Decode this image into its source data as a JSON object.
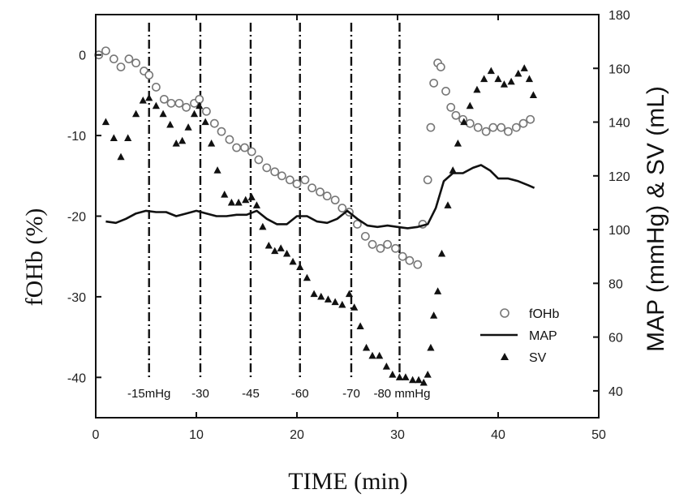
{
  "chart_data": {
    "type": "scatter",
    "xlabel": "TIME (min)",
    "ylabel_left": "fOHb (%)",
    "ylabel_right": "MAP (mmHg) & SV (mL)",
    "xlim": [
      0,
      50
    ],
    "ylim_left": [
      -45,
      5
    ],
    "ylim_right": [
      30,
      180
    ],
    "x_ticks": [
      0,
      10,
      20,
      30,
      40,
      50
    ],
    "y_left_ticks": [
      0,
      -10,
      -20,
      -30,
      -40
    ],
    "y_right_ticks": [
      40,
      60,
      80,
      100,
      120,
      140,
      160,
      180
    ],
    "grid": false,
    "legend_position": "bottom-right",
    "phase_markers": [
      {
        "x": 5.3,
        "label": "-15mHg"
      },
      {
        "x": 10.4,
        "label": "-30"
      },
      {
        "x": 15.4,
        "label": "-45"
      },
      {
        "x": 20.3,
        "label": "-60"
      },
      {
        "x": 25.4,
        "label": "-70"
      },
      {
        "x": 30.2,
        "label": "-80 mmHg"
      }
    ],
    "series": [
      {
        "name": "fOHb",
        "axis": "left",
        "marker": "open-circle",
        "points": [
          [
            0.3,
            0
          ],
          [
            1,
            0.5
          ],
          [
            1.8,
            -0.5
          ],
          [
            2.5,
            -1.5
          ],
          [
            3.3,
            -0.5
          ],
          [
            4,
            -1
          ],
          [
            4.8,
            -2
          ],
          [
            5.3,
            -2.5
          ],
          [
            6,
            -4
          ],
          [
            6.8,
            -5.5
          ],
          [
            7.5,
            -6
          ],
          [
            8.3,
            -6
          ],
          [
            9,
            -6.5
          ],
          [
            9.8,
            -6
          ],
          [
            10.3,
            -5.5
          ],
          [
            11,
            -7
          ],
          [
            11.8,
            -8.5
          ],
          [
            12.5,
            -9.5
          ],
          [
            13.3,
            -10.5
          ],
          [
            14,
            -11.5
          ],
          [
            14.8,
            -11.5
          ],
          [
            15.5,
            -12
          ],
          [
            16.2,
            -13
          ],
          [
            17,
            -14
          ],
          [
            17.8,
            -14.5
          ],
          [
            18.5,
            -15
          ],
          [
            19.3,
            -15.5
          ],
          [
            20,
            -16
          ],
          [
            20.8,
            -15.5
          ],
          [
            21.5,
            -16.5
          ],
          [
            22.3,
            -17
          ],
          [
            23,
            -17.5
          ],
          [
            23.8,
            -18
          ],
          [
            24.5,
            -19
          ],
          [
            25.2,
            -19.5
          ],
          [
            26,
            -21
          ],
          [
            26.8,
            -22.5
          ],
          [
            27.5,
            -23.5
          ],
          [
            28.3,
            -24
          ],
          [
            29,
            -23.5
          ],
          [
            29.8,
            -24
          ],
          [
            30.5,
            -25
          ],
          [
            31.2,
            -25.5
          ],
          [
            32,
            -26
          ],
          [
            32.5,
            -21
          ],
          [
            33,
            -15.5
          ],
          [
            33.3,
            -9
          ],
          [
            33.6,
            -3.5
          ],
          [
            34,
            -1
          ],
          [
            34.3,
            -1.5
          ],
          [
            34.8,
            -4.5
          ],
          [
            35.3,
            -6.5
          ],
          [
            35.8,
            -7.5
          ],
          [
            36.5,
            -8
          ],
          [
            37.2,
            -8.5
          ],
          [
            38,
            -9
          ],
          [
            38.8,
            -9.5
          ],
          [
            39.5,
            -9
          ],
          [
            40.3,
            -9
          ],
          [
            41,
            -9.5
          ],
          [
            41.8,
            -9
          ],
          [
            42.5,
            -8.5
          ],
          [
            43.2,
            -8
          ]
        ]
      },
      {
        "name": "MAP",
        "axis": "right",
        "marker": "line",
        "points": [
          [
            1,
            103
          ],
          [
            2,
            102.5
          ],
          [
            3,
            104
          ],
          [
            4,
            106
          ],
          [
            5,
            107
          ],
          [
            6,
            106.5
          ],
          [
            7,
            106.5
          ],
          [
            8,
            105
          ],
          [
            9,
            106
          ],
          [
            10,
            107
          ],
          [
            11,
            106
          ],
          [
            12,
            105
          ],
          [
            13,
            105
          ],
          [
            14,
            105.5
          ],
          [
            15,
            105.5
          ],
          [
            16,
            107
          ],
          [
            17,
            104
          ],
          [
            18,
            102
          ],
          [
            19,
            102
          ],
          [
            20,
            105
          ],
          [
            21,
            105
          ],
          [
            22,
            103
          ],
          [
            23,
            102.5
          ],
          [
            24,
            104
          ],
          [
            25,
            107
          ],
          [
            26,
            104
          ],
          [
            27,
            101.5
          ],
          [
            28,
            101
          ],
          [
            29,
            101.5
          ],
          [
            30,
            101
          ],
          [
            31,
            100.5
          ],
          [
            32,
            101
          ],
          [
            33,
            102
          ],
          [
            33.8,
            108
          ],
          [
            34.6,
            118
          ],
          [
            35.5,
            121
          ],
          [
            36.5,
            121
          ],
          [
            37.5,
            123
          ],
          [
            38.3,
            124
          ],
          [
            39.2,
            122
          ],
          [
            40,
            119
          ],
          [
            41,
            119
          ],
          [
            42,
            118
          ],
          [
            43,
            116.5
          ],
          [
            43.6,
            115.5
          ]
        ]
      },
      {
        "name": "SV",
        "axis": "right",
        "marker": "filled-triangle",
        "points": [
          [
            1,
            140
          ],
          [
            1.8,
            134
          ],
          [
            2.5,
            127
          ],
          [
            3.2,
            134
          ],
          [
            4,
            143
          ],
          [
            4.7,
            148
          ],
          [
            5.3,
            149
          ],
          [
            6,
            146
          ],
          [
            6.7,
            143
          ],
          [
            7.4,
            139
          ],
          [
            8,
            132
          ],
          [
            8.6,
            133
          ],
          [
            9.2,
            138
          ],
          [
            9.8,
            143
          ],
          [
            10.3,
            146
          ],
          [
            10.9,
            140
          ],
          [
            11.5,
            132
          ],
          [
            12.1,
            122
          ],
          [
            12.8,
            113
          ],
          [
            13.5,
            110
          ],
          [
            14.2,
            110
          ],
          [
            14.9,
            111
          ],
          [
            15.5,
            112
          ],
          [
            16,
            109
          ],
          [
            16.6,
            101
          ],
          [
            17.2,
            94
          ],
          [
            17.8,
            92
          ],
          [
            18.4,
            93
          ],
          [
            19,
            91
          ],
          [
            19.6,
            88
          ],
          [
            20.3,
            86
          ],
          [
            21,
            82
          ],
          [
            21.7,
            76
          ],
          [
            22.4,
            75
          ],
          [
            23.1,
            74
          ],
          [
            23.8,
            73
          ],
          [
            24.5,
            72
          ],
          [
            25.2,
            76
          ],
          [
            25.7,
            71
          ],
          [
            26.3,
            64
          ],
          [
            26.9,
            56
          ],
          [
            27.5,
            53
          ],
          [
            28.2,
            53
          ],
          [
            28.9,
            49
          ],
          [
            29.5,
            46
          ],
          [
            30.2,
            45
          ],
          [
            30.8,
            45
          ],
          [
            31.5,
            44
          ],
          [
            32.1,
            44
          ],
          [
            32.6,
            43
          ],
          [
            33,
            46
          ],
          [
            33.3,
            56
          ],
          [
            33.6,
            68
          ],
          [
            34,
            77
          ],
          [
            34.4,
            91
          ],
          [
            35,
            109
          ],
          [
            35.5,
            122
          ],
          [
            36,
            132
          ],
          [
            36.6,
            140
          ],
          [
            37.2,
            146
          ],
          [
            37.9,
            152
          ],
          [
            38.6,
            156
          ],
          [
            39.3,
            159
          ],
          [
            40,
            156
          ],
          [
            40.6,
            154
          ],
          [
            41.3,
            155
          ],
          [
            42,
            158
          ],
          [
            42.6,
            160
          ],
          [
            43.1,
            156
          ],
          [
            43.5,
            150
          ]
        ]
      }
    ]
  }
}
